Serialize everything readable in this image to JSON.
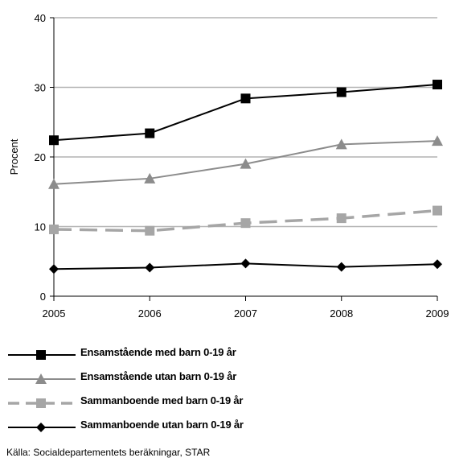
{
  "chart_data": {
    "type": "line",
    "x": [
      "2005",
      "2006",
      "2007",
      "2008",
      "2009"
    ],
    "ylabel": "Procent",
    "ylim": [
      0,
      40
    ],
    "yticks": [
      "0",
      "10",
      "20",
      "30",
      "40"
    ],
    "grid": "horizontal",
    "legend_position": "bottom",
    "series": [
      {
        "name": "Ensamstående med barn 0-19 år",
        "values": [
          22.4,
          23.4,
          28.4,
          29.3,
          30.4
        ],
        "color": "#000000",
        "marker": "square",
        "dash": "solid",
        "width": 2
      },
      {
        "name": "Ensamstående utan barn 0-19 år",
        "values": [
          16.1,
          16.9,
          19.0,
          21.8,
          22.3
        ],
        "color": "#8c8c8c",
        "marker": "triangle",
        "dash": "solid",
        "width": 2
      },
      {
        "name": "Sammanboende med barn 0-19 år",
        "values": [
          9.6,
          9.4,
          10.5,
          11.2,
          12.3
        ],
        "color": "#a6a6a6",
        "marker": "square",
        "dash": "dashed",
        "width": 3.5
      },
      {
        "name": "Sammanboende utan barn 0-19 år",
        "values": [
          3.9,
          4.1,
          4.7,
          4.2,
          4.6
        ],
        "color": "#000000",
        "marker": "diamond",
        "dash": "solid",
        "width": 2
      }
    ]
  },
  "source": "Källa: Socialdepartementets beräkningar, STAR"
}
